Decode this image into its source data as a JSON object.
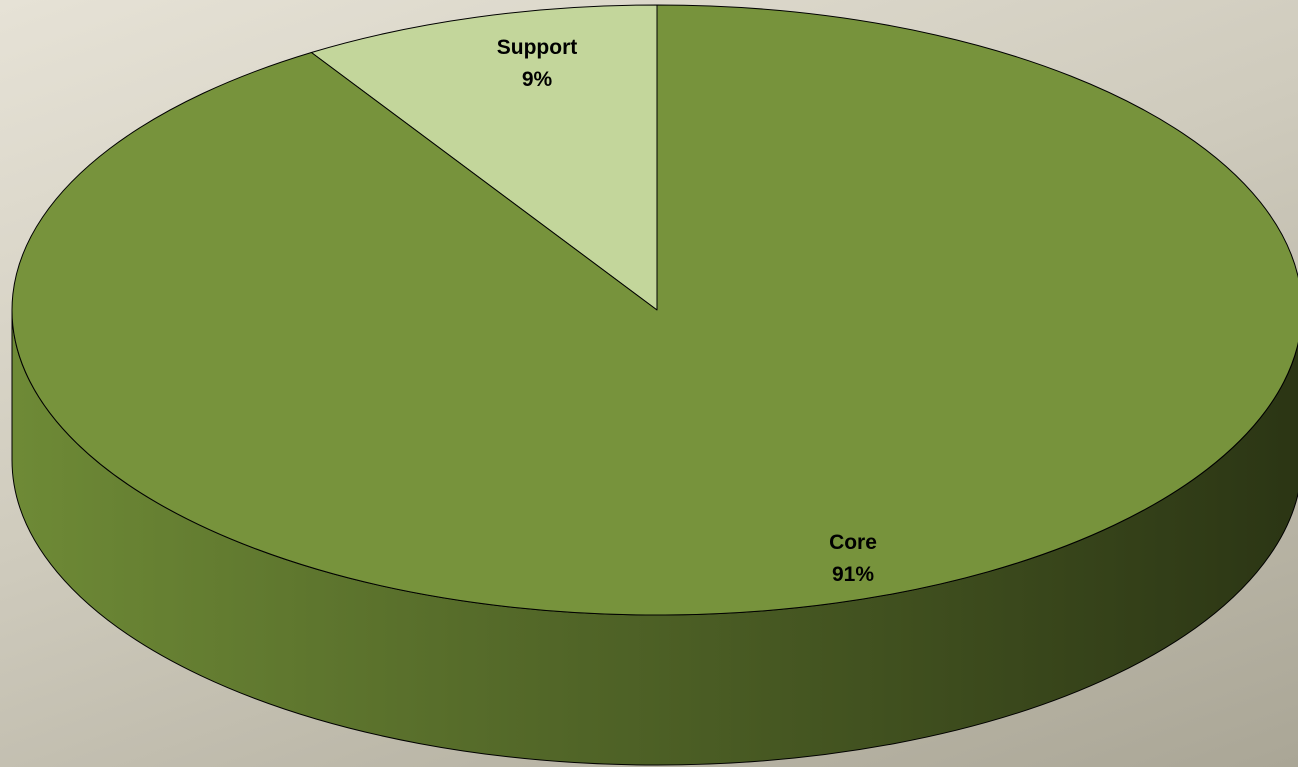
{
  "chart_data": {
    "type": "pie",
    "style": "3d-tilted",
    "title": "",
    "legend": "none",
    "slices": [
      {
        "label": "Support",
        "value": 9,
        "value_label": "9%",
        "color": "#c3d69b"
      },
      {
        "label": "Core",
        "value": 91,
        "value_label": "91%",
        "color": "#77933c"
      }
    ],
    "side_colors": {
      "light": "#6e8a36",
      "dark": "#2b3514"
    },
    "outline_color": "#000000"
  }
}
